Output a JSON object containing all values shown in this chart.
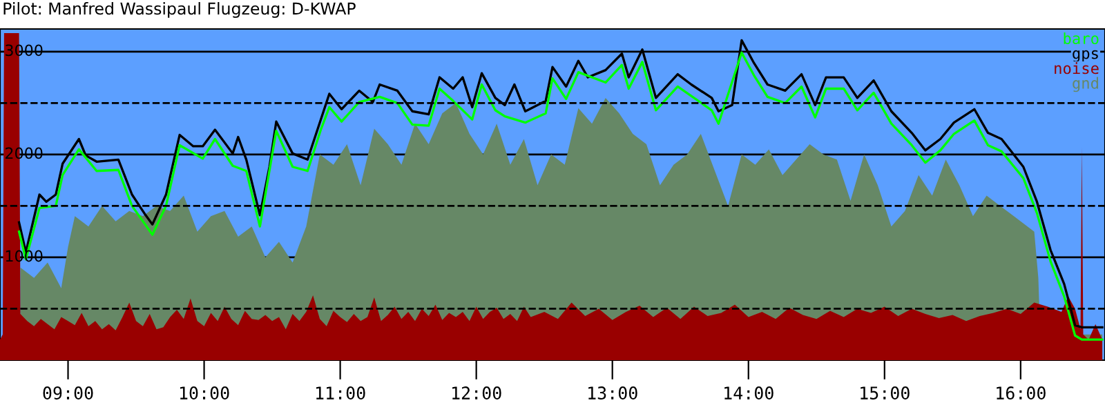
{
  "chart_data": {
    "type": "line",
    "title": "Pilot: Manfred Wassipaul Flugzeug: D-KWAP",
    "xlim": [
      8.5,
      16.62
    ],
    "ylim": [
      0,
      3220
    ],
    "xticks": [
      {
        "value": 9,
        "label": "09:00"
      },
      {
        "value": 10,
        "label": "10:00"
      },
      {
        "value": 11,
        "label": "11:00"
      },
      {
        "value": 12,
        "label": "12:00"
      },
      {
        "value": 13,
        "label": "13:00"
      },
      {
        "value": 14,
        "label": "14:00"
      },
      {
        "value": 15,
        "label": "15:00"
      },
      {
        "value": 16,
        "label": "16:00"
      }
    ],
    "yticks": [
      1000,
      2000,
      3000
    ],
    "grid": "y",
    "legend": "top right",
    "ref_lines": [
      {
        "axis": "y",
        "value": 500,
        "color": "#000000",
        "line_style": "dashed"
      },
      {
        "axis": "y",
        "value": 1500,
        "color": "#000000",
        "line_style": "dashed"
      },
      {
        "axis": "y",
        "value": 2500,
        "color": "#000000",
        "line_style": "dashed"
      }
    ],
    "series": [
      {
        "name": "baro",
        "type": "line",
        "color": "#00ff00",
        "x": [
          8.64,
          8.69,
          8.79,
          8.91,
          8.96,
          9.08,
          9.21,
          9.37,
          9.47,
          9.62,
          9.72,
          9.82,
          9.99,
          10.08,
          10.21,
          10.31,
          10.41,
          10.53,
          10.65,
          10.76,
          10.86,
          10.92,
          11.01,
          11.14,
          11.29,
          11.42,
          11.53,
          11.65,
          11.73,
          11.83,
          11.97,
          12.04,
          12.14,
          12.21,
          12.36,
          12.51,
          12.56,
          12.66,
          12.75,
          12.95,
          13.07,
          13.12,
          13.22,
          13.32,
          13.48,
          13.73,
          13.78,
          13.95,
          14.04,
          14.14,
          14.27,
          14.39,
          14.49,
          14.57,
          14.7,
          14.8,
          14.92,
          15.05,
          15.2,
          15.3,
          15.41,
          15.51,
          15.66,
          15.76,
          15.86,
          16.02,
          16.12,
          16.22,
          16.32,
          16.4,
          16.45,
          16.6
        ],
        "values": [
          1250,
          980,
          1480,
          1500,
          1800,
          2050,
          1840,
          1850,
          1500,
          1220,
          1500,
          2090,
          1960,
          2150,
          1890,
          1840,
          1300,
          2230,
          1880,
          1840,
          2250,
          2460,
          2320,
          2510,
          2560,
          2500,
          2290,
          2280,
          2640,
          2520,
          2340,
          2680,
          2430,
          2370,
          2310,
          2400,
          2740,
          2540,
          2800,
          2700,
          2870,
          2640,
          2900,
          2430,
          2660,
          2430,
          2300,
          2990,
          2770,
          2560,
          2500,
          2660,
          2360,
          2640,
          2640,
          2430,
          2600,
          2300,
          2090,
          1920,
          2040,
          2200,
          2330,
          2090,
          2030,
          1770,
          1430,
          960,
          620,
          240,
          200,
          200
        ]
      },
      {
        "name": "gps",
        "type": "line",
        "color": "#000000",
        "x": [
          8.64,
          8.69,
          8.79,
          8.84,
          8.91,
          8.96,
          9.08,
          9.13,
          9.21,
          9.37,
          9.47,
          9.57,
          9.62,
          9.72,
          9.82,
          9.92,
          9.99,
          10.08,
          10.21,
          10.25,
          10.31,
          10.41,
          10.48,
          10.53,
          10.65,
          10.76,
          10.86,
          10.92,
          11.01,
          11.14,
          11.24,
          11.29,
          11.42,
          11.53,
          11.65,
          11.73,
          11.83,
          11.9,
          11.97,
          12.04,
          12.14,
          12.21,
          12.28,
          12.36,
          12.51,
          12.56,
          12.66,
          12.75,
          12.82,
          12.95,
          13.07,
          13.12,
          13.22,
          13.32,
          13.48,
          13.58,
          13.73,
          13.78,
          13.88,
          13.95,
          14.04,
          14.14,
          14.27,
          14.39,
          14.49,
          14.57,
          14.7,
          14.8,
          14.92,
          15.05,
          15.2,
          15.3,
          15.41,
          15.51,
          15.66,
          15.76,
          15.86,
          16.02,
          16.12,
          16.22,
          16.32,
          16.4,
          16.45,
          16.6
        ],
        "values": [
          1340,
          1050,
          1610,
          1540,
          1610,
          1910,
          2150,
          1990,
          1930,
          1950,
          1610,
          1410,
          1320,
          1610,
          2190,
          2080,
          2080,
          2240,
          2010,
          2170,
          1950,
          1410,
          1880,
          2320,
          2010,
          1950,
          2350,
          2590,
          2440,
          2620,
          2510,
          2680,
          2620,
          2420,
          2390,
          2750,
          2640,
          2750,
          2460,
          2790,
          2550,
          2480,
          2680,
          2420,
          2520,
          2850,
          2660,
          2910,
          2750,
          2820,
          2980,
          2750,
          3020,
          2550,
          2780,
          2680,
          2550,
          2420,
          2480,
          3110,
          2890,
          2680,
          2620,
          2780,
          2480,
          2750,
          2750,
          2550,
          2720,
          2420,
          2210,
          2040,
          2150,
          2310,
          2440,
          2210,
          2150,
          1880,
          1540,
          1070,
          740,
          340,
          320,
          320
        ]
      },
      {
        "name": "noise",
        "type": "area",
        "color": "#990000",
        "x": [
          8.5,
          8.52,
          8.53,
          8.64,
          8.65,
          8.7,
          8.75,
          8.8,
          8.85,
          8.9,
          8.95,
          9.0,
          9.05,
          9.1,
          9.15,
          9.2,
          9.25,
          9.3,
          9.35,
          9.4,
          9.45,
          9.5,
          9.55,
          9.6,
          9.65,
          9.7,
          9.75,
          9.8,
          9.85,
          9.9,
          9.95,
          10.0,
          10.05,
          10.1,
          10.15,
          10.2,
          10.25,
          10.3,
          10.35,
          10.4,
          10.45,
          10.5,
          10.55,
          10.6,
          10.65,
          10.7,
          10.75,
          10.8,
          10.85,
          10.9,
          10.95,
          11.0,
          11.05,
          11.1,
          11.15,
          11.2,
          11.25,
          11.3,
          11.35,
          11.4,
          11.45,
          11.5,
          11.55,
          11.6,
          11.65,
          11.7,
          11.75,
          11.8,
          11.85,
          11.9,
          11.95,
          12.0,
          12.05,
          12.1,
          12.15,
          12.2,
          12.25,
          12.3,
          12.35,
          12.4,
          12.5,
          12.6,
          12.7,
          12.8,
          12.9,
          13.0,
          13.1,
          13.2,
          13.3,
          13.4,
          13.5,
          13.6,
          13.7,
          13.8,
          13.9,
          14.0,
          14.1,
          14.2,
          14.3,
          14.4,
          14.5,
          14.6,
          14.7,
          14.8,
          14.9,
          15.0,
          15.1,
          15.2,
          15.3,
          15.4,
          15.5,
          15.6,
          15.7,
          15.8,
          15.9,
          16.0,
          16.1,
          16.2,
          16.3,
          16.35,
          16.4,
          16.44,
          16.45,
          16.46,
          16.5,
          16.55,
          16.6
        ],
        "values": [
          200,
          250,
          3180,
          3180,
          450,
          380,
          330,
          400,
          350,
          300,
          420,
          380,
          340,
          460,
          330,
          380,
          300,
          350,
          290,
          420,
          560,
          380,
          330,
          450,
          300,
          320,
          420,
          490,
          400,
          600,
          380,
          330,
          460,
          380,
          520,
          400,
          340,
          480,
          400,
          390,
          440,
          380,
          420,
          300,
          450,
          380,
          470,
          630,
          400,
          330,
          480,
          420,
          370,
          450,
          380,
          420,
          610,
          380,
          440,
          520,
          400,
          470,
          380,
          500,
          430,
          540,
          390,
          460,
          420,
          470,
          380,
          520,
          400,
          470,
          510,
          400,
          450,
          380,
          520,
          420,
          470,
          400,
          560,
          430,
          500,
          390,
          470,
          530,
          420,
          510,
          400,
          520,
          430,
          460,
          540,
          420,
          470,
          400,
          510,
          440,
          400,
          480,
          420,
          500,
          460,
          520,
          430,
          500,
          450,
          410,
          440,
          380,
          430,
          460,
          500,
          450,
          560,
          520,
          470,
          620,
          500,
          300,
          2070,
          250,
          200,
          350,
          200
        ]
      },
      {
        "name": "gnd",
        "type": "area",
        "color": "#668866",
        "x": [
          8.65,
          8.75,
          8.85,
          8.95,
          9.0,
          9.05,
          9.15,
          9.25,
          9.35,
          9.45,
          9.55,
          9.65,
          9.75,
          9.85,
          9.95,
          10.05,
          10.15,
          10.25,
          10.35,
          10.45,
          10.55,
          10.65,
          10.75,
          10.85,
          10.95,
          11.05,
          11.15,
          11.25,
          11.35,
          11.45,
          11.55,
          11.65,
          11.75,
          11.85,
          11.95,
          12.05,
          12.15,
          12.25,
          12.35,
          12.45,
          12.55,
          12.65,
          12.75,
          12.85,
          12.95,
          13.05,
          13.15,
          13.25,
          13.35,
          13.45,
          13.55,
          13.65,
          13.75,
          13.85,
          13.95,
          14.05,
          14.15,
          14.25,
          14.35,
          14.45,
          14.55,
          14.65,
          14.75,
          14.85,
          14.95,
          15.05,
          15.15,
          15.25,
          15.35,
          15.45,
          15.55,
          15.65,
          15.75,
          15.85,
          15.95,
          16.05,
          16.1,
          16.13,
          16.15,
          16.44,
          16.46,
          16.6
        ],
        "values": [
          900,
          800,
          950,
          700,
          1100,
          1400,
          1300,
          1500,
          1350,
          1450,
          1400,
          1500,
          1450,
          1600,
          1250,
          1400,
          1450,
          1200,
          1300,
          1000,
          1150,
          950,
          1300,
          2000,
          1900,
          2100,
          1700,
          2250,
          2100,
          1900,
          2300,
          2100,
          2400,
          2500,
          2200,
          2000,
          2300,
          1900,
          2150,
          1700,
          2000,
          1900,
          2450,
          2300,
          2550,
          2400,
          2200,
          2100,
          1700,
          1900,
          2000,
          2200,
          1850,
          1500,
          2000,
          1900,
          2050,
          1800,
          1950,
          2100,
          2000,
          1950,
          1550,
          2000,
          1700,
          1300,
          1450,
          1800,
          1600,
          1950,
          1700,
          1400,
          1600,
          1500,
          1400,
          1300,
          1250,
          800,
          0,
          0,
          250,
          250
        ]
      }
    ]
  }
}
